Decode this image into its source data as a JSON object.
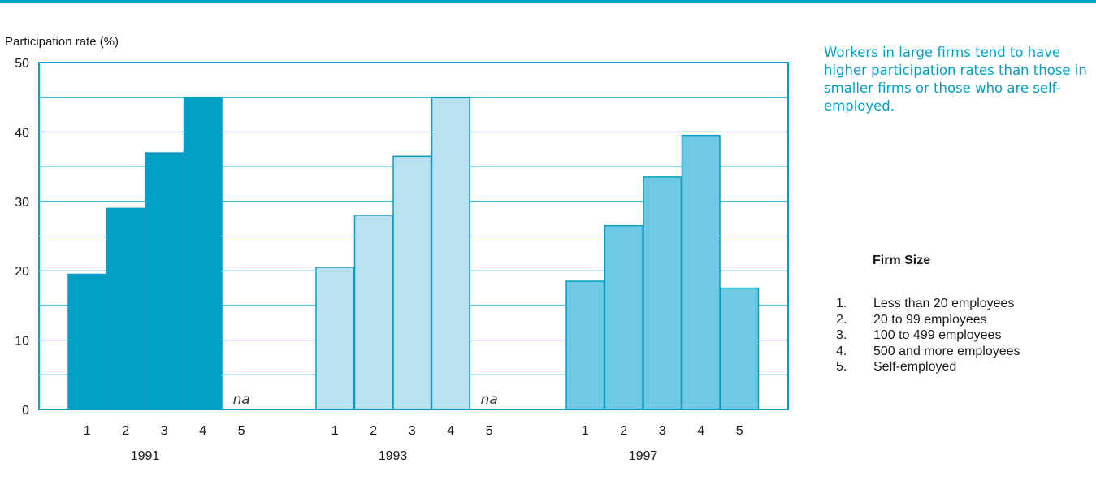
{
  "chart_data": {
    "type": "bar",
    "ylabel": "Participation rate (%)",
    "ylim": [
      0,
      50
    ],
    "yticks": [
      "0",
      "10",
      "20",
      "30",
      "40",
      "50"
    ],
    "grid": true,
    "groups": [
      {
        "label": "1991",
        "categories": [
          "1",
          "2",
          "3",
          "4",
          "5"
        ],
        "values": [
          19.5,
          29,
          37,
          45,
          null
        ],
        "color": "#00a0c6"
      },
      {
        "label": "1993",
        "categories": [
          "1",
          "2",
          "3",
          "4",
          "5"
        ],
        "values": [
          20.5,
          28,
          36.5,
          45,
          null
        ],
        "color": "#b8e1f1"
      },
      {
        "label": "1997",
        "categories": [
          "1",
          "2",
          "3",
          "4",
          "5"
        ],
        "values": [
          18.5,
          26.5,
          33.5,
          39.5,
          17.5
        ],
        "color": "#6ecae3"
      }
    ],
    "missing_label": "na"
  },
  "annotation": "Workers in large firms tend to have higher participation rates than those in smaller firms or those who are self-employed.",
  "legend": {
    "title": "Firm Size",
    "items": [
      {
        "num": "1.",
        "label": "Less than 20 employees"
      },
      {
        "num": "2.",
        "label": "20 to 99 employees"
      },
      {
        "num": "3.",
        "label": "100 to 499 employees"
      },
      {
        "num": "4.",
        "label": "500 and more employees"
      },
      {
        "num": "5.",
        "label": "Self-employed"
      }
    ]
  },
  "colors": {
    "accent": "#00a0c6",
    "frame": "#00a0c6",
    "grid": "#00a0c6",
    "bar_edge": "#0a9cc4"
  }
}
